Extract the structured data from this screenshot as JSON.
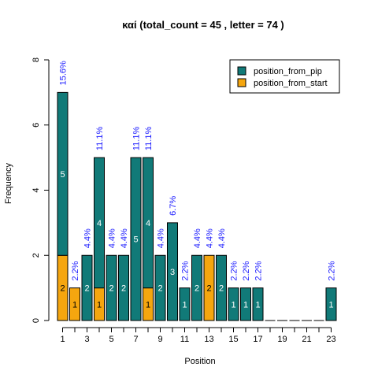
{
  "chart_data": {
    "type": "bar",
    "title": "καί  (total_count =  45 , letter = 74 )",
    "xlabel": "Position",
    "ylabel": "Frequency",
    "ylim": [
      0,
      8
    ],
    "yticks": [
      0,
      2,
      4,
      6,
      8
    ],
    "categories": [
      1,
      2,
      3,
      4,
      5,
      6,
      7,
      8,
      9,
      10,
      11,
      12,
      13,
      14,
      15,
      16,
      17,
      18,
      19,
      20,
      21,
      22,
      23
    ],
    "xtick_labels": [
      "1",
      "3",
      "5",
      "7",
      "9",
      "11",
      "13",
      "15",
      "17",
      "19",
      "21",
      "23"
    ],
    "series": [
      {
        "name": "position_from_pip",
        "color": "#117a78",
        "values": [
          5,
          0,
          2,
          4,
          2,
          2,
          5,
          4,
          2,
          3,
          1,
          2,
          0,
          2,
          1,
          1,
          1,
          0,
          0,
          0,
          0,
          0,
          1
        ]
      },
      {
        "name": "position_from_start",
        "color": "#f5a60f",
        "values": [
          2,
          1,
          0,
          1,
          0,
          0,
          0,
          1,
          0,
          0,
          0,
          0,
          2,
          0,
          0,
          0,
          0,
          0,
          0,
          0,
          0,
          0,
          0
        ]
      }
    ],
    "percent_labels": [
      "15.6%",
      "2.2%",
      "4.4%",
      "11.1%",
      "4.4%",
      "4.4%",
      "11.1%",
      "11.1%",
      "4.4%",
      "6.7%",
      "2.2%",
      "4.4%",
      "4.4%",
      "4.4%",
      "2.2%",
      "2.2%",
      "2.2%",
      "",
      "",
      "",
      "",
      "",
      "2.2%"
    ],
    "legend_position": "top-right",
    "grid": false
  }
}
